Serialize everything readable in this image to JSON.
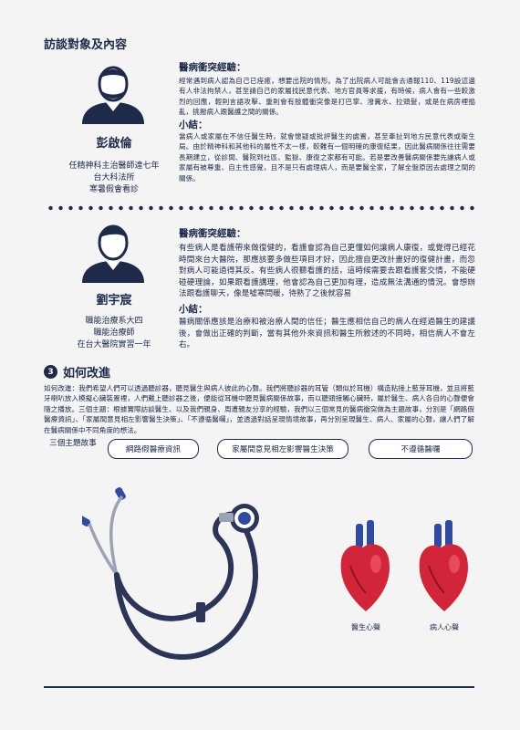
{
  "page": {
    "heading": "訪談對象及內容",
    "person1": {
      "name": "彭啟倫",
      "roles": [
        "任精神科主治醫師達七年",
        "台大科法所",
        "寒暑假會看診"
      ],
      "section1_title": "醫病衝突經驗：",
      "section1_text": "經常遇到病人認為自己已痊癒，想要出院的情形。為了出院病人可能會去通報110、119設這邊有人非法拘禁人，甚至請自己的家屬找民意代表、地方官員等求援，有時候，病人會有一些較激烈的回應，輕則言語攻擊、重則會有肢體衝突像是打巴掌、潑糞水、拉頭髮，或是在病房裡搗亂，挑撥病人跟醫護之間的關係。",
      "section2_title": "小結：",
      "section2_text": "當病人或家屬在不信任醫生時，就會懷疑或批評醫生的處置，甚至牽扯到地方民意代表或衛生局。由於精神科和其他科的屬性不太一樣，較難有一個明確的康復結果，因此醫病關係往往需要長期建立，從診間、醫院到社區、監獄、康復之家都有可能。若是要改善醫病關係要先讓病人或家屬有被尊重、自主性感覺，且不是只有處理病人，而是要醫全家，了解全盤原因去處理之間的關係。"
    },
    "person2": {
      "name": "劉宇宸",
      "roles": [
        "職能治療系大四",
        "職能治療師",
        "在台大醫院實習一年"
      ],
      "section1_title": "醫病衝突經驗：",
      "section1_text": "有些病人是看護帶來做復健的，看護會認為自己更懂如何讓病人康復，或覺得已經花時間來台大醫院，那應該要多做些項目才好，因此擅自更改計畫好的復健計畫，而忽對病人可能過得其反。有些病人很聽看護的話，這時候需要去跟看護套交情，不能硬碰硬理論，如果跟看護講理，他會認為自己更加有理，造成無法溝通的情況。會想辦法跟看護聊天，像是噓寒問暖，待熟了之後就容易",
      "section2_title": "小結：",
      "section2_text": "醫病關係應該是治療和被治療人間的信任；醫生應相信自己的病人在經過醫生的建議後，會做出正確的判斷，當有其他外來資訊和醫生所敘述的不同時，相信病人不會左右。"
    },
    "section3": {
      "number": "3",
      "title": "如何改進",
      "text": "如何改進：我們希望人們可以透過聽診器，聽見醫生與病人彼此的心聲。我們將聽診器的耳管（類似於耳機）構造粘接上藍芽耳機，並且將藍牙喇叭放入模擬心臟裝置裡，人們戴上聽診器之後，便能從耳機中聽見醫病關係故事，而以聽頭接觸心臟時，屬於醫生、病人各自的心聲便會隨之播放。三個主題：根據實際訪談醫生、以及我們親身、周遭親友分享的經驗，我們以三個常見的醫病衝突做為主題故事，分別是「網路假醫療資訊」、「家屬間意見相左影響醫生決策」、「不遵循醫囑」，並透過對話呈現情境故事，再分別呈現醫生、病人、家屬的心聲，讓人們了解在醫病關係中不同角度的想法。",
      "theme_label": "三個主題故事",
      "themes": [
        "網路假醫療資訊",
        "家屬間意見相左影響醫生決策",
        "不遵循醫囑"
      ],
      "heart_captions": [
        "醫生心聲",
        "病人心聲"
      ]
    },
    "colors": {
      "navy": "#1e2a4a",
      "heart_red": "#d2253a",
      "stethoscope": "#2b3557",
      "accent_blue": "#2f4aa0"
    }
  }
}
